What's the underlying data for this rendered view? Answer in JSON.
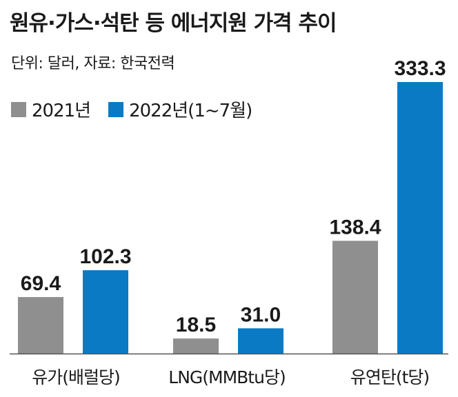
{
  "title": "원유·가스·석탄 등 에너지원 가격 추이",
  "unit_source": "단위: 달러, 자료: 한국전력",
  "colors": {
    "series_2021": "#8f8f8f",
    "series_2022": "#0a7ac4",
    "baseline": "#555555"
  },
  "chart_data": {
    "type": "bar",
    "categories": [
      "유가(배럴당)",
      "LNG(MMBtu당)",
      "유연탄(t당)"
    ],
    "series": [
      {
        "name": "2021년",
        "values": [
          69.4,
          18.5,
          138.4
        ],
        "labels": [
          "69.4",
          "18.5",
          "138.4"
        ]
      },
      {
        "name": "2022년(1~7월)",
        "values": [
          102.3,
          31.0,
          333.3
        ],
        "labels": [
          "102.3",
          "31.0",
          "333.3"
        ]
      }
    ],
    "ylim": [
      0,
      333.3
    ],
    "grid": false,
    "legend": "top-left"
  }
}
